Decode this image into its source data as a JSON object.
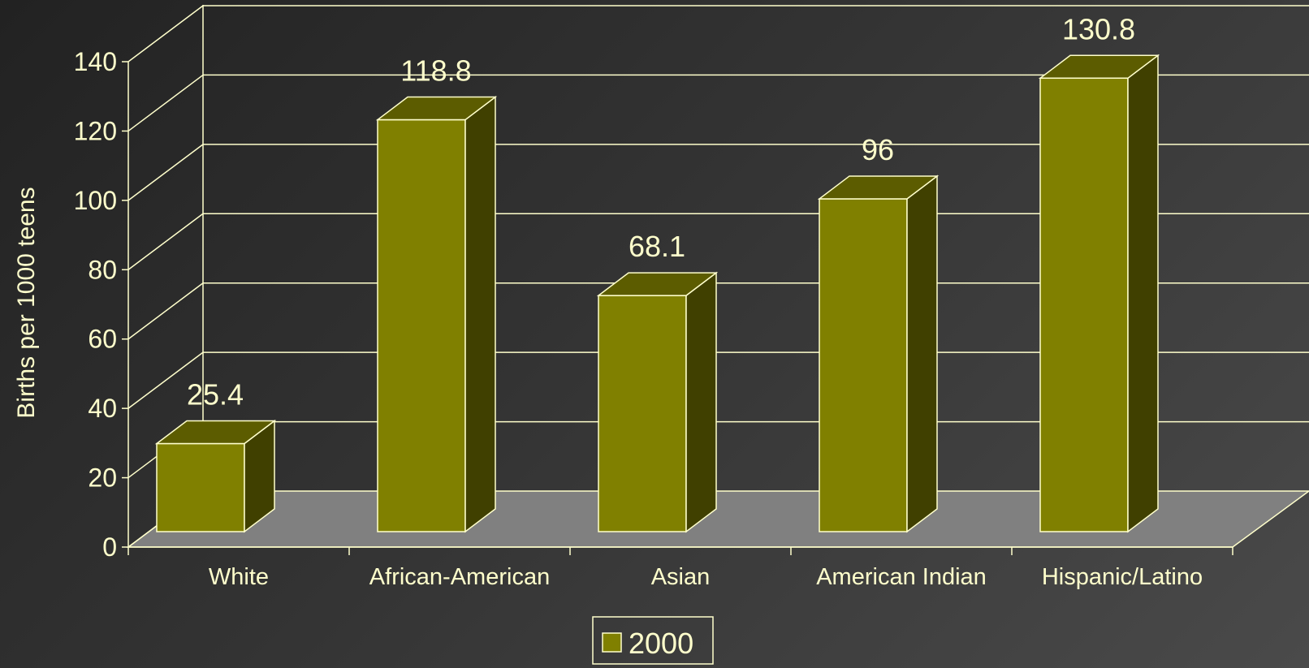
{
  "chart_data": {
    "type": "bar",
    "categories": [
      "White",
      "African-American",
      "Asian",
      "American Indian",
      "Hispanic/Latino"
    ],
    "series": [
      {
        "name": "2000",
        "values": [
          25.4,
          118.8,
          68.1,
          96,
          130.8
        ]
      }
    ],
    "data_labels": [
      "25.4",
      "118.8",
      "68.1",
      "96",
      "130.8"
    ],
    "ylabel": "Births per 1000 teens",
    "xlabel": "",
    "ylim": [
      0,
      140
    ],
    "y_ticks": [
      0,
      20,
      40,
      60,
      80,
      100,
      120,
      140
    ],
    "y_tick_labels": [
      "0",
      "20",
      "40",
      "60",
      "80",
      "100",
      "120",
      "140"
    ],
    "grid": true,
    "legend_position": "bottom-center",
    "three_d": true,
    "colors": {
      "bar_front": "#808000",
      "bar_top": "#5c5c00",
      "bar_side": "#404000",
      "floor": "#808080",
      "grid_lines": "#ffffcc",
      "text": "#ffffcc"
    }
  }
}
